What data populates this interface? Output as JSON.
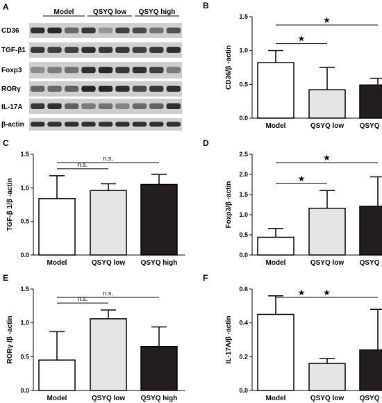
{
  "panel_a": {
    "label": "A",
    "groups": [
      "Model",
      "QSYQ low",
      "QSYQ high"
    ],
    "rows": [
      "CD36",
      "TGF-β1",
      "Foxp3",
      "RORγ",
      "IL-17A",
      "β-actin"
    ]
  },
  "colors": {
    "model": "#ffffff",
    "qsyq_low": "#e5e5e5",
    "qsyq_high": "#231f20",
    "stroke": "#000000"
  },
  "chart_data": [
    {
      "panel": "B",
      "type": "bar",
      "categories": [
        "Model",
        "QSYQ low",
        "QSYQ high"
      ],
      "values": [
        0.82,
        0.42,
        0.49
      ],
      "errors": [
        0.18,
        0.33,
        0.1
      ],
      "ylabel": "CD36/β -actin",
      "ylim": [
        0,
        1.5
      ],
      "yticks": [
        "0.0",
        "0.5",
        "1.0",
        "1.5"
      ],
      "comparisons": [
        {
          "from": 0,
          "to": 1,
          "label": "★"
        },
        {
          "from": 0,
          "to": 2,
          "label": "★"
        }
      ]
    },
    {
      "panel": "C",
      "type": "bar",
      "categories": [
        "Model",
        "QSYQ low",
        "QSYQ high"
      ],
      "values": [
        0.84,
        0.96,
        1.05
      ],
      "errors": [
        0.34,
        0.1,
        0.15
      ],
      "ylabel": "TGF-β 1/β -actin",
      "ylim": [
        0,
        1.5
      ],
      "yticks": [
        "0.0",
        "0.5",
        "1.0",
        "1.5"
      ],
      "comparisons": [
        {
          "from": 0,
          "to": 1,
          "label": "n.s."
        },
        {
          "from": 0,
          "to": 2,
          "label": "n.s."
        }
      ]
    },
    {
      "panel": "D",
      "type": "bar",
      "categories": [
        "Model",
        "QSYQ low",
        "QSYQ high"
      ],
      "values": [
        0.44,
        1.16,
        1.21
      ],
      "errors": [
        0.22,
        0.44,
        0.73
      ],
      "ylabel": "Foxp3/β -actin",
      "ylim": [
        0,
        2.5
      ],
      "yticks": [
        "0.0",
        "0.5",
        "1.0",
        "1.5",
        "2.0",
        "2.5"
      ],
      "comparisons": [
        {
          "from": 0,
          "to": 1,
          "label": "★"
        },
        {
          "from": 0,
          "to": 2,
          "label": "★"
        }
      ]
    },
    {
      "panel": "E",
      "type": "bar",
      "categories": [
        "Model",
        "QSYQ low",
        "QSYQ high"
      ],
      "values": [
        0.45,
        1.06,
        0.65
      ],
      "errors": [
        0.42,
        0.13,
        0.29
      ],
      "ylabel": "RORγ /β -actin",
      "ylim": [
        0,
        1.5
      ],
      "yticks": [
        "0.0",
        "0.5",
        "1.0",
        "1.5"
      ],
      "comparisons": [
        {
          "from": 0,
          "to": 1,
          "label": "n.s."
        },
        {
          "from": 0,
          "to": 2,
          "label": "n.s."
        }
      ]
    },
    {
      "panel": "F",
      "type": "bar",
      "categories": [
        "Model",
        "QSYQ low",
        "QSYQ high"
      ],
      "values": [
        0.45,
        0.16,
        0.24
      ],
      "errors": [
        0.11,
        0.03,
        0.24
      ],
      "ylabel": "IL-17A/β -actin",
      "ylim": [
        0,
        0.6
      ],
      "yticks": [
        "0.0",
        "0.2",
        "0.4",
        "0.6"
      ],
      "comparisons": [
        {
          "from": 0,
          "to": 1,
          "label": "★"
        },
        {
          "from": 0,
          "to": 2,
          "label": "★"
        }
      ]
    }
  ]
}
